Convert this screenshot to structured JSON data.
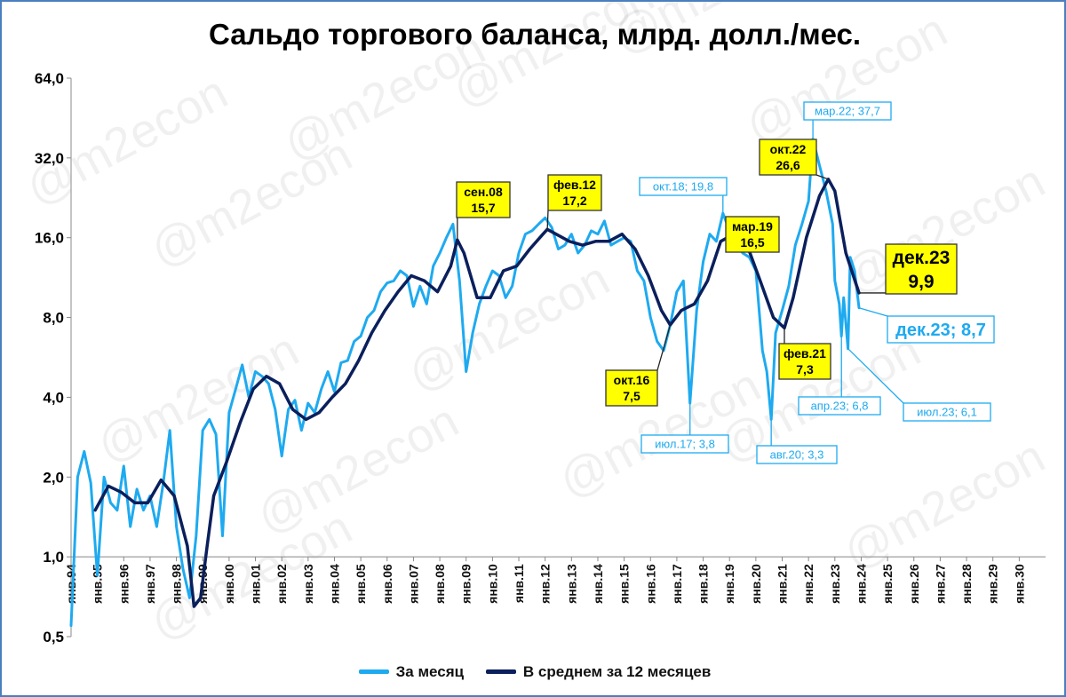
{
  "chart_data": {
    "type": "line",
    "title": "Сальдо торгового баланса, млрд. долл./мес.",
    "y_scale": "log2",
    "ylim": [
      0.5,
      64
    ],
    "y_ticks": [
      "0,5",
      "1,0",
      "2,0",
      "4,0",
      "8,0",
      "16,0",
      "32,0",
      "64,0"
    ],
    "y_tick_values": [
      0.5,
      1,
      2,
      4,
      8,
      16,
      32,
      64
    ],
    "x_range": [
      "янв.94",
      "дек.30"
    ],
    "x_ticks": [
      "янв.94",
      "янв.95",
      "янв.96",
      "янв.97",
      "янв.98",
      "янв.99",
      "янв.00",
      "янв.01",
      "янв.02",
      "янв.03",
      "янв.04",
      "янв.05",
      "янв.06",
      "янв.07",
      "янв.08",
      "янв.09",
      "янв.10",
      "янв.11",
      "янв.12",
      "янв.13",
      "янв.14",
      "янв.15",
      "янв.16",
      "янв.17",
      "янв.18",
      "янв.19",
      "янв.20",
      "янв.21",
      "янв.22",
      "янв.23",
      "янв.24",
      "янв.25",
      "янв.26",
      "янв.27",
      "янв.28",
      "янв.29",
      "янв.30"
    ],
    "grid": false,
    "legend_position": "bottom",
    "series": [
      {
        "name": "За месяц",
        "color": "#1eaaf0",
        "points": [
          [
            "1994-01",
            0.55
          ],
          [
            "1994-04",
            2.0
          ],
          [
            "1994-07",
            2.5
          ],
          [
            "1994-10",
            1.9
          ],
          [
            "1995-01",
            0.85
          ],
          [
            "1995-04",
            2.0
          ],
          [
            "1995-07",
            1.6
          ],
          [
            "1995-10",
            1.5
          ],
          [
            "1996-01",
            2.2
          ],
          [
            "1996-04",
            1.3
          ],
          [
            "1996-07",
            1.8
          ],
          [
            "1996-10",
            1.5
          ],
          [
            "1997-01",
            1.7
          ],
          [
            "1997-04",
            1.3
          ],
          [
            "1997-07",
            1.9
          ],
          [
            "1997-10",
            3.0
          ],
          [
            "1998-01",
            1.3
          ],
          [
            "1998-04",
            0.9
          ],
          [
            "1998-07",
            0.7
          ],
          [
            "1998-10",
            1.2
          ],
          [
            "1999-01",
            3.0
          ],
          [
            "1999-04",
            3.3
          ],
          [
            "1999-07",
            2.9
          ],
          [
            "1999-10",
            1.2
          ],
          [
            "2000-01",
            3.5
          ],
          [
            "2000-04",
            4.3
          ],
          [
            "2000-07",
            5.3
          ],
          [
            "2000-10",
            4.0
          ],
          [
            "2001-01",
            5.0
          ],
          [
            "2001-04",
            4.8
          ],
          [
            "2001-07",
            4.5
          ],
          [
            "2001-10",
            3.6
          ],
          [
            "2002-01",
            2.4
          ],
          [
            "2002-04",
            3.6
          ],
          [
            "2002-07",
            3.9
          ],
          [
            "2002-10",
            3.0
          ],
          [
            "2003-01",
            3.8
          ],
          [
            "2003-04",
            3.5
          ],
          [
            "2003-07",
            4.3
          ],
          [
            "2003-10",
            5.0
          ],
          [
            "2004-01",
            4.2
          ],
          [
            "2004-04",
            5.4
          ],
          [
            "2004-07",
            5.5
          ],
          [
            "2004-10",
            6.5
          ],
          [
            "2005-01",
            6.8
          ],
          [
            "2005-04",
            8.0
          ],
          [
            "2005-07",
            8.5
          ],
          [
            "2005-10",
            10.0
          ],
          [
            "2006-01",
            10.8
          ],
          [
            "2006-04",
            11.0
          ],
          [
            "2006-07",
            12.0
          ],
          [
            "2006-10",
            11.5
          ],
          [
            "2007-01",
            8.8
          ],
          [
            "2007-04",
            10.5
          ],
          [
            "2007-07",
            9.0
          ],
          [
            "2007-10",
            12.5
          ],
          [
            "2008-01",
            14.0
          ],
          [
            "2008-04",
            16.0
          ],
          [
            "2008-07",
            18.0
          ],
          [
            "2008-10",
            11.0
          ],
          [
            "2009-01",
            5.0
          ],
          [
            "2009-04",
            7.0
          ],
          [
            "2009-07",
            9.0
          ],
          [
            "2009-10",
            10.5
          ],
          [
            "2010-01",
            12.0
          ],
          [
            "2010-04",
            11.5
          ],
          [
            "2010-07",
            9.5
          ],
          [
            "2010-10",
            10.5
          ],
          [
            "2011-01",
            14.0
          ],
          [
            "2011-04",
            16.5
          ],
          [
            "2011-07",
            17.0
          ],
          [
            "2011-10",
            18.0
          ],
          [
            "2012-01",
            19.0
          ],
          [
            "2012-04",
            17.5
          ],
          [
            "2012-07",
            14.5
          ],
          [
            "2012-10",
            15.0
          ],
          [
            "2013-01",
            16.5
          ],
          [
            "2013-04",
            14.0
          ],
          [
            "2013-07",
            15.0
          ],
          [
            "2013-10",
            17.0
          ],
          [
            "2014-01",
            16.5
          ],
          [
            "2014-04",
            18.5
          ],
          [
            "2014-07",
            15.0
          ],
          [
            "2014-10",
            15.5
          ],
          [
            "2015-01",
            16.0
          ],
          [
            "2015-04",
            15.5
          ],
          [
            "2015-07",
            12.0
          ],
          [
            "2015-10",
            11.0
          ],
          [
            "2016-01",
            8.0
          ],
          [
            "2016-04",
            6.5
          ],
          [
            "2016-07",
            6.0
          ],
          [
            "2016-10",
            7.5
          ],
          [
            "2017-01",
            10.0
          ],
          [
            "2017-04",
            11.0
          ],
          [
            "2017-07",
            3.8
          ],
          [
            "2017-10",
            8.5
          ],
          [
            "2018-01",
            13.0
          ],
          [
            "2018-04",
            16.5
          ],
          [
            "2018-07",
            15.5
          ],
          [
            "2018-10",
            19.8
          ],
          [
            "2019-01",
            17.0
          ],
          [
            "2019-04",
            15.5
          ],
          [
            "2019-07",
            14.0
          ],
          [
            "2019-10",
            13.5
          ],
          [
            "2020-01",
            12.0
          ],
          [
            "2020-04",
            6.0
          ],
          [
            "2020-06",
            5.0
          ],
          [
            "2020-08",
            3.3
          ],
          [
            "2020-10",
            7.0
          ],
          [
            "2021-01",
            8.5
          ],
          [
            "2021-04",
            10.5
          ],
          [
            "2021-07",
            15.0
          ],
          [
            "2021-10",
            18.0
          ],
          [
            "2022-01",
            22.0
          ],
          [
            "2022-03",
            37.7
          ],
          [
            "2022-06",
            30.0
          ],
          [
            "2022-09",
            24.0
          ],
          [
            "2022-12",
            18.0
          ],
          [
            "2023-01",
            11.0
          ],
          [
            "2023-03",
            9.0
          ],
          [
            "2023-04",
            6.8
          ],
          [
            "2023-05",
            9.5
          ],
          [
            "2023-07",
            6.1
          ],
          [
            "2023-08",
            13.5
          ],
          [
            "2023-10",
            12.0
          ],
          [
            "2023-12",
            8.7
          ]
        ]
      },
      {
        "name": "В среднем за 12 месяцев",
        "color": "#0a1f5c",
        "points": [
          [
            "1994-12",
            1.5
          ],
          [
            "1995-06",
            1.85
          ],
          [
            "1995-12",
            1.75
          ],
          [
            "1996-06",
            1.6
          ],
          [
            "1996-12",
            1.6
          ],
          [
            "1997-06",
            1.95
          ],
          [
            "1997-12",
            1.7
          ],
          [
            "1998-06",
            1.1
          ],
          [
            "1998-09",
            0.65
          ],
          [
            "1998-12",
            0.7
          ],
          [
            "1999-03",
            1.1
          ],
          [
            "1999-06",
            1.7
          ],
          [
            "1999-12",
            2.3
          ],
          [
            "2000-06",
            3.2
          ],
          [
            "2000-12",
            4.3
          ],
          [
            "2001-06",
            4.8
          ],
          [
            "2001-12",
            4.5
          ],
          [
            "2002-06",
            3.6
          ],
          [
            "2002-12",
            3.3
          ],
          [
            "2003-06",
            3.5
          ],
          [
            "2003-12",
            4.0
          ],
          [
            "2004-06",
            4.5
          ],
          [
            "2004-12",
            5.5
          ],
          [
            "2005-06",
            7.0
          ],
          [
            "2005-12",
            8.5
          ],
          [
            "2006-06",
            10.0
          ],
          [
            "2006-12",
            11.5
          ],
          [
            "2007-06",
            11.0
          ],
          [
            "2007-12",
            10.0
          ],
          [
            "2008-06",
            12.5
          ],
          [
            "2008-09",
            15.7
          ],
          [
            "2008-12",
            14.0
          ],
          [
            "2009-06",
            9.5
          ],
          [
            "2009-12",
            9.5
          ],
          [
            "2010-06",
            12.0
          ],
          [
            "2010-12",
            12.5
          ],
          [
            "2011-06",
            14.5
          ],
          [
            "2011-12",
            16.5
          ],
          [
            "2012-02",
            17.2
          ],
          [
            "2012-12",
            15.5
          ],
          [
            "2013-06",
            15.0
          ],
          [
            "2013-12",
            15.5
          ],
          [
            "2014-06",
            15.5
          ],
          [
            "2014-12",
            16.5
          ],
          [
            "2015-06",
            14.5
          ],
          [
            "2015-12",
            11.5
          ],
          [
            "2016-06",
            8.5
          ],
          [
            "2016-10",
            7.5
          ],
          [
            "2017-03",
            8.5
          ],
          [
            "2017-09",
            9.0
          ],
          [
            "2018-03",
            11.0
          ],
          [
            "2018-09",
            15.5
          ],
          [
            "2019-03",
            16.5
          ],
          [
            "2019-09",
            15.0
          ],
          [
            "2020-03",
            11.0
          ],
          [
            "2020-09",
            8.0
          ],
          [
            "2021-02",
            7.3
          ],
          [
            "2021-06",
            9.5
          ],
          [
            "2021-12",
            16.0
          ],
          [
            "2022-06",
            23.0
          ],
          [
            "2022-10",
            26.6
          ],
          [
            "2023-01",
            24.0
          ],
          [
            "2023-06",
            14.0
          ],
          [
            "2023-12",
            9.9
          ]
        ]
      }
    ],
    "annotations": [
      {
        "text_lines": [
          "сен.08",
          "15,7"
        ],
        "date": "2008-09",
        "value": 15.7,
        "style": "callout-yellow"
      },
      {
        "text_lines": [
          "фев.12",
          "17,2"
        ],
        "date": "2012-02",
        "value": 17.2,
        "style": "callout-yellow"
      },
      {
        "text_lines": [
          "окт.16",
          "7,5"
        ],
        "date": "2016-10",
        "value": 7.5,
        "style": "callout-yellow"
      },
      {
        "text_lines": [
          "мар.19",
          "16,5"
        ],
        "date": "2019-03",
        "value": 16.5,
        "style": "callout-yellow"
      },
      {
        "text_lines": [
          "фев.21",
          "7,3"
        ],
        "date": "2021-02",
        "value": 7.3,
        "style": "callout-yellow"
      },
      {
        "text_lines": [
          "окт.22",
          "26,6"
        ],
        "date": "2022-10",
        "value": 26.6,
        "style": "callout-yellow"
      },
      {
        "text_lines": [
          "дек.23",
          "9,9"
        ],
        "date": "2023-12",
        "value": 9.9,
        "style": "callout-yellow-large"
      },
      {
        "text_lines": [
          "окт.18; 19,8"
        ],
        "date": "2018-10",
        "value": 19.8,
        "style": "callout-blue"
      },
      {
        "text_lines": [
          "мар.22; 37,7"
        ],
        "date": "2022-03",
        "value": 37.7,
        "style": "callout-blue"
      },
      {
        "text_lines": [
          "июл.17; 3,8"
        ],
        "date": "2017-07",
        "value": 3.8,
        "style": "callout-blue"
      },
      {
        "text_lines": [
          "авг.20; 3,3"
        ],
        "date": "2020-08",
        "value": 3.3,
        "style": "callout-blue"
      },
      {
        "text_lines": [
          "апр.23; 6,8"
        ],
        "date": "2023-04",
        "value": 6.8,
        "style": "callout-blue"
      },
      {
        "text_lines": [
          "июл.23; 6,1"
        ],
        "date": "2023-07",
        "value": 6.1,
        "style": "callout-blue"
      },
      {
        "text_lines": [
          "дек.23; 8,7"
        ],
        "date": "2023-12",
        "value": 8.7,
        "style": "callout-blue-large"
      }
    ],
    "watermark": "@m2econ"
  }
}
